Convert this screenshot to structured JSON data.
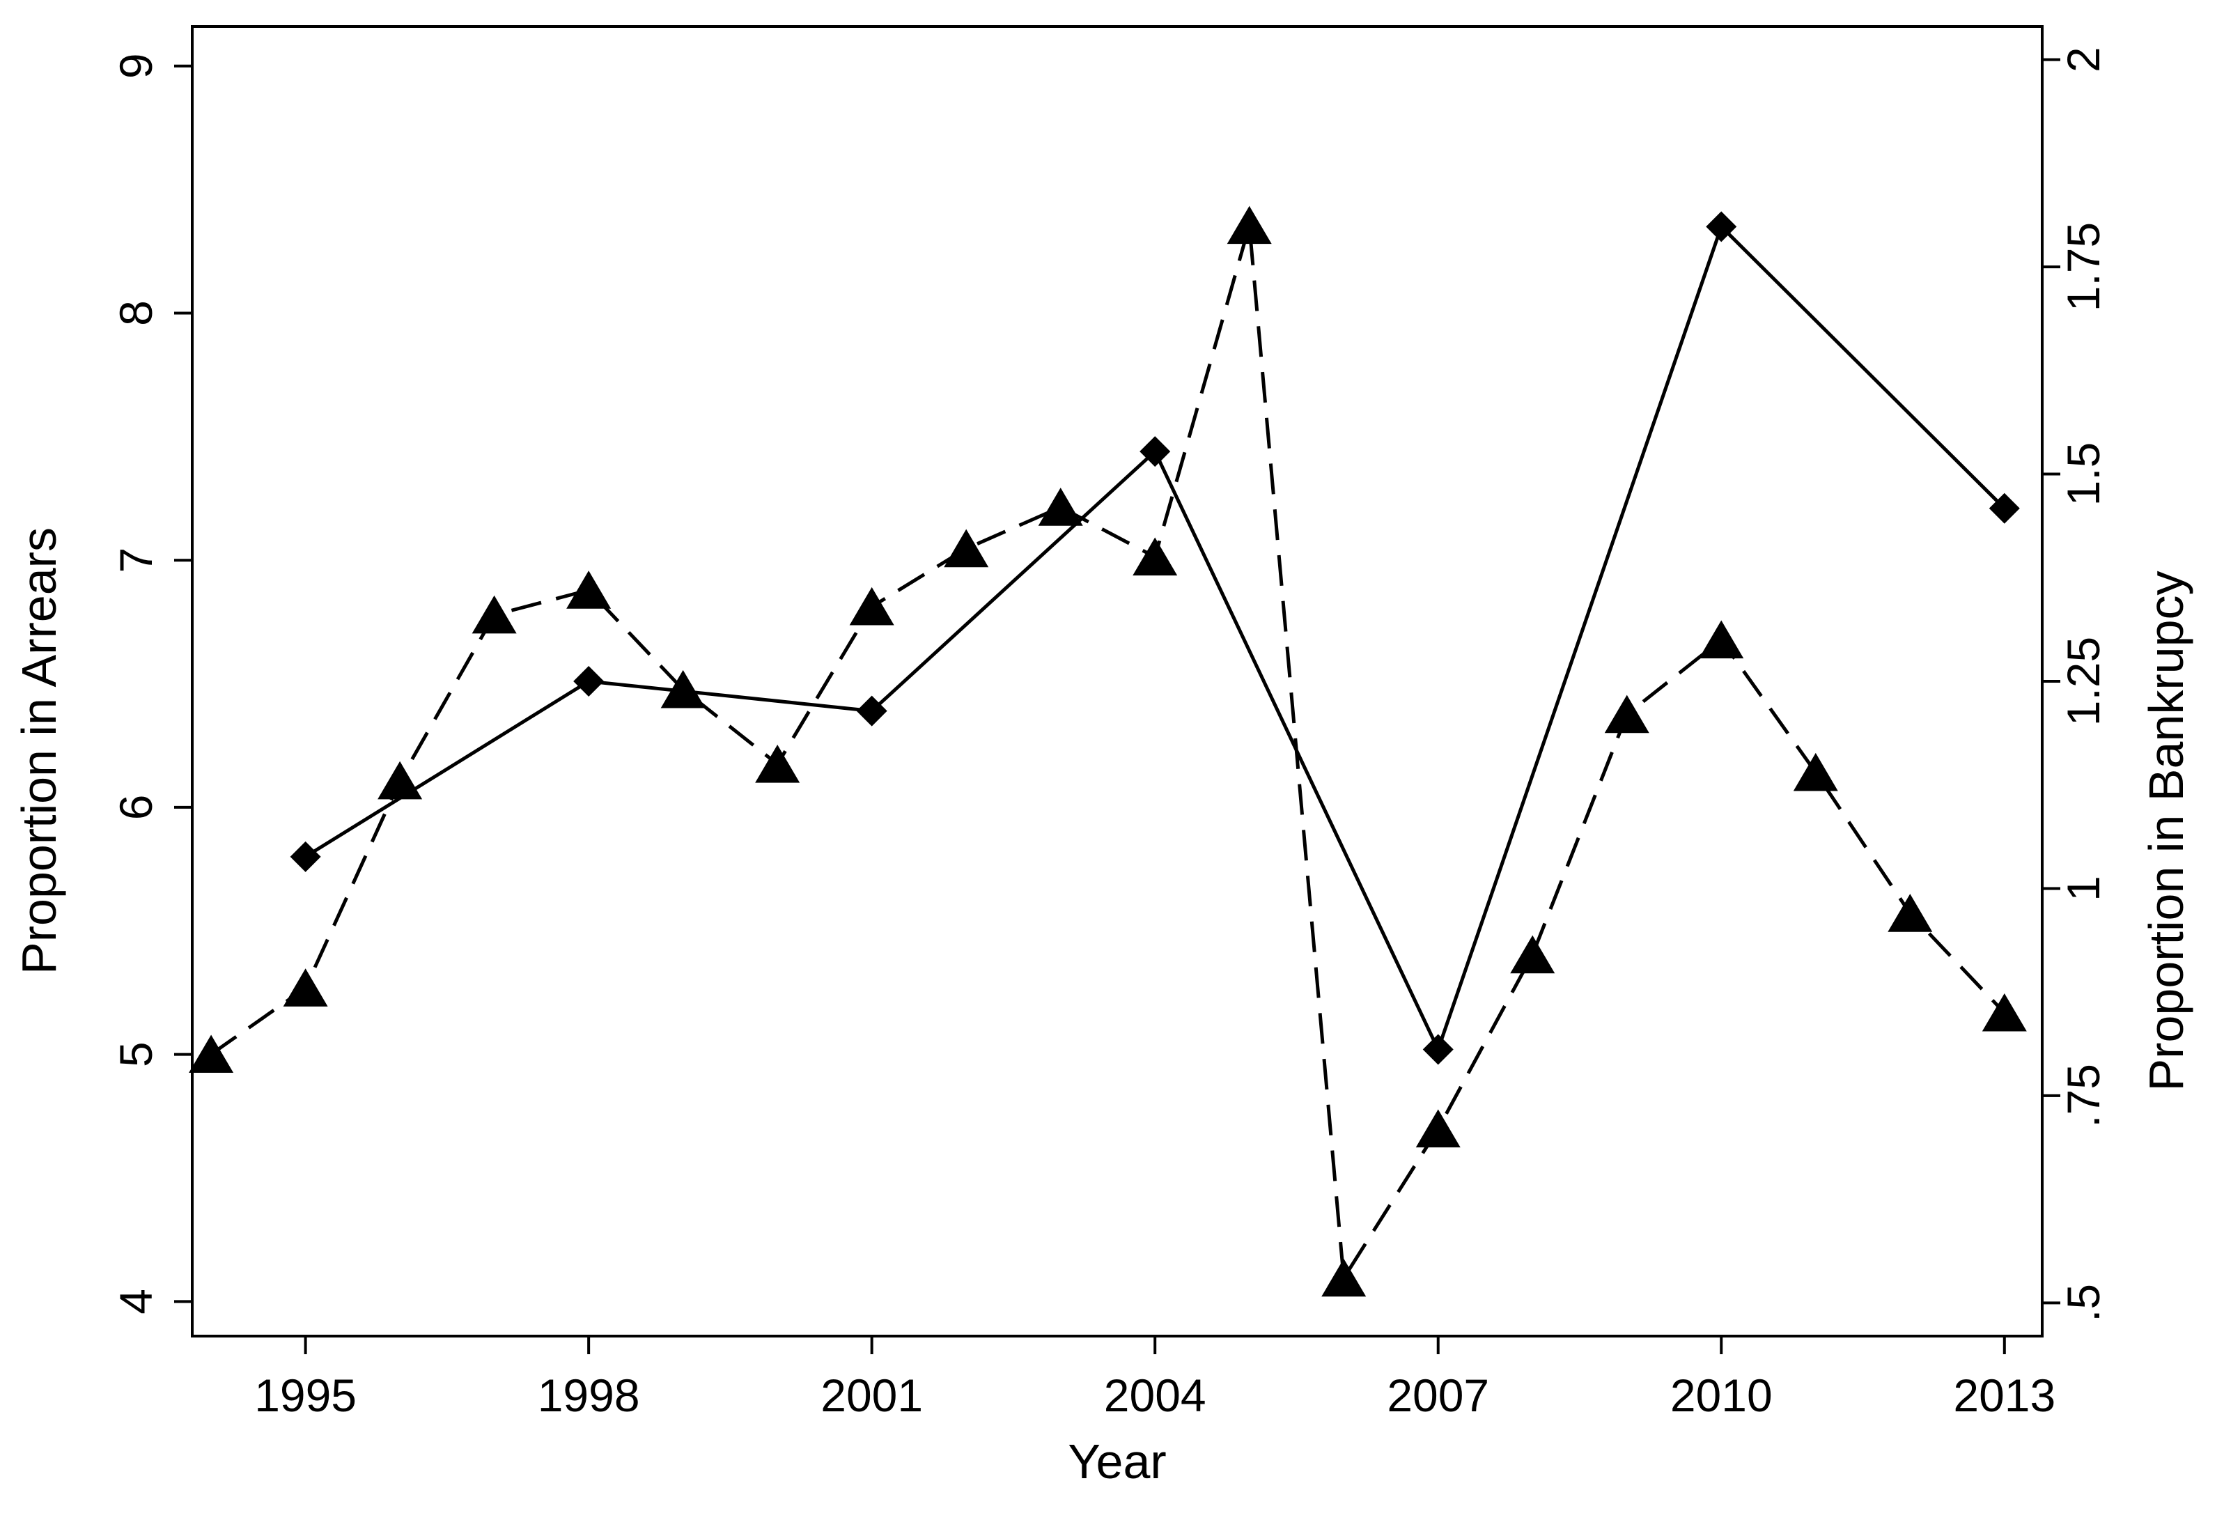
{
  "chart_data": {
    "type": "line",
    "title": "",
    "xlabel": "Year",
    "ylabel": "Proportion in Arrears",
    "y2label": "Proportion in Bankrupcy",
    "xlim": [
      1993.8,
      2013.4
    ],
    "ylim": [
      3.86,
      9.16
    ],
    "y2lim": [
      0.46,
      2.04
    ],
    "x_ticks": [
      1995,
      1998,
      2001,
      2004,
      2007,
      2010,
      2013
    ],
    "x_tick_labels": [
      "1995",
      "1998",
      "2001",
      "2004",
      "2007",
      "2010",
      "2013"
    ],
    "y_ticks": [
      4,
      5,
      6,
      7,
      8,
      9
    ],
    "y_tick_labels": [
      "4",
      "5",
      "6",
      "7",
      "8",
      "9"
    ],
    "y2_ticks": [
      0.5,
      0.75,
      1,
      1.25,
      1.5,
      1.75,
      2
    ],
    "y2_tick_labels": [
      ".5",
      ".75",
      "1",
      "1.25",
      "1.5",
      "1.75",
      "2"
    ],
    "grid": false,
    "legend": "none",
    "series": [
      {
        "axis": "left",
        "line_style": "solid",
        "marker": "diamond",
        "color": "#000000",
        "x": [
          1995,
          1998,
          2001,
          2004,
          2007,
          2010,
          2013
        ],
        "y": [
          5.8,
          6.51,
          6.39,
          7.44,
          5.02,
          8.35,
          7.21
        ]
      },
      {
        "axis": "right",
        "line_style": "dashed",
        "marker": "triangle",
        "color": "#000000",
        "x": [
          1994,
          1995,
          1996,
          1997,
          1998,
          1999,
          2000,
          2001,
          2002,
          2003,
          2004,
          2005,
          2006,
          2007,
          2008,
          2009,
          2010,
          2011,
          2012,
          2013
        ],
        "y": [
          0.8,
          0.88,
          1.13,
          1.33,
          1.36,
          1.24,
          1.15,
          1.34,
          1.41,
          1.46,
          1.4,
          1.8,
          0.53,
          0.71,
          0.92,
          1.21,
          1.3,
          1.14,
          0.97,
          0.85
        ]
      }
    ]
  }
}
